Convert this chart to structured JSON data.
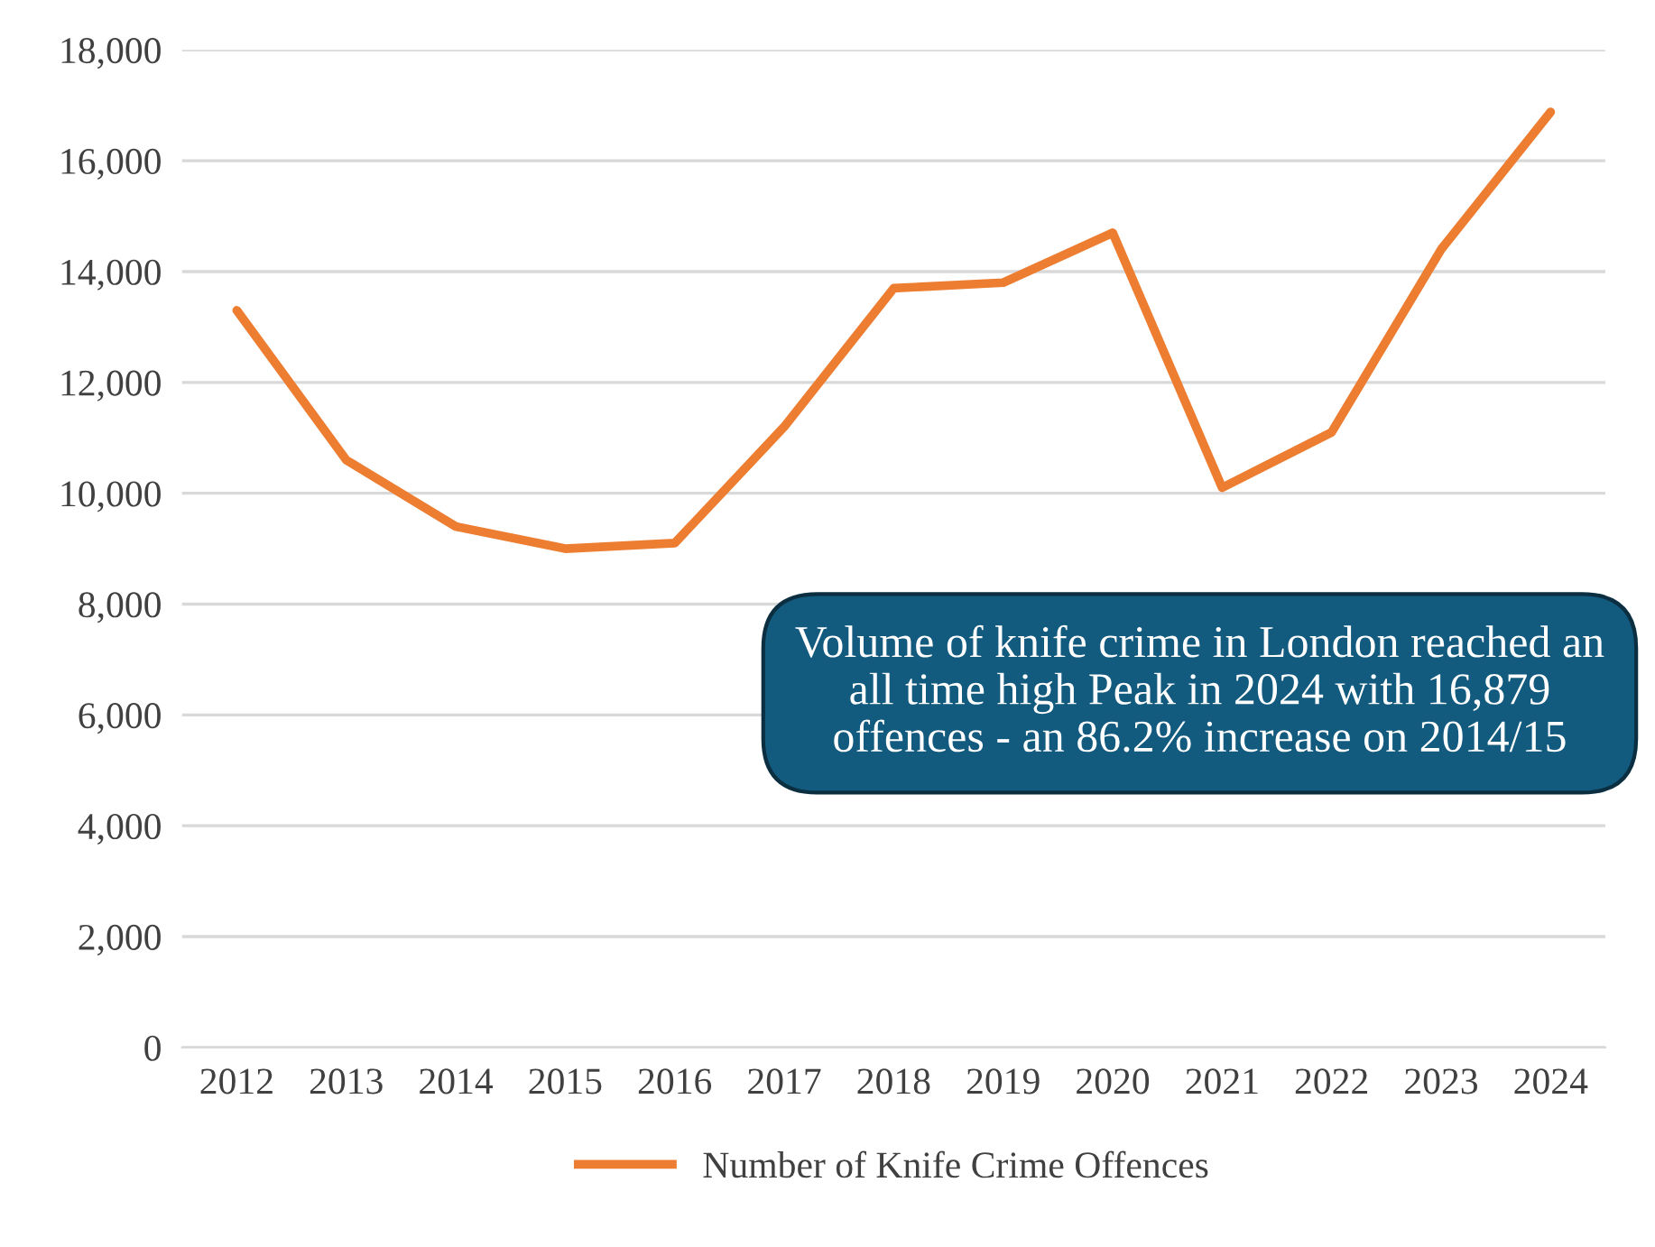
{
  "chart_data": {
    "type": "line",
    "categories": [
      "2012",
      "2013",
      "2014",
      "2015",
      "2016",
      "2017",
      "2018",
      "2019",
      "2020",
      "2021",
      "2022",
      "2023",
      "2024"
    ],
    "series": [
      {
        "name": "Number of Knife Crime Offences",
        "color": "#ed7d31",
        "values": [
          13300,
          10600,
          9400,
          9000,
          9100,
          11200,
          13700,
          13800,
          14700,
          10100,
          11100,
          14400,
          16879
        ]
      }
    ],
    "ylim": [
      0,
      18000
    ],
    "yticks": [
      {
        "value": 0,
        "label": "0"
      },
      {
        "value": 2000,
        "label": "2,000"
      },
      {
        "value": 4000,
        "label": "4,000"
      },
      {
        "value": 6000,
        "label": "6,000"
      },
      {
        "value": 8000,
        "label": "8,000"
      },
      {
        "value": 10000,
        "label": "10,000"
      },
      {
        "value": 12000,
        "label": "12,000"
      },
      {
        "value": 14000,
        "label": "14,000"
      },
      {
        "value": 16000,
        "label": "16,000"
      },
      {
        "value": 18000,
        "label": "18,000"
      }
    ],
    "grid": "y",
    "legend": "bottom",
    "marker": "none",
    "line_style": "solid",
    "annotations": [
      "Volume of knife crime in London reached an all time high Peak in 2024 with 16,879 offences - an 86.2% increase on 2014/15"
    ]
  }
}
